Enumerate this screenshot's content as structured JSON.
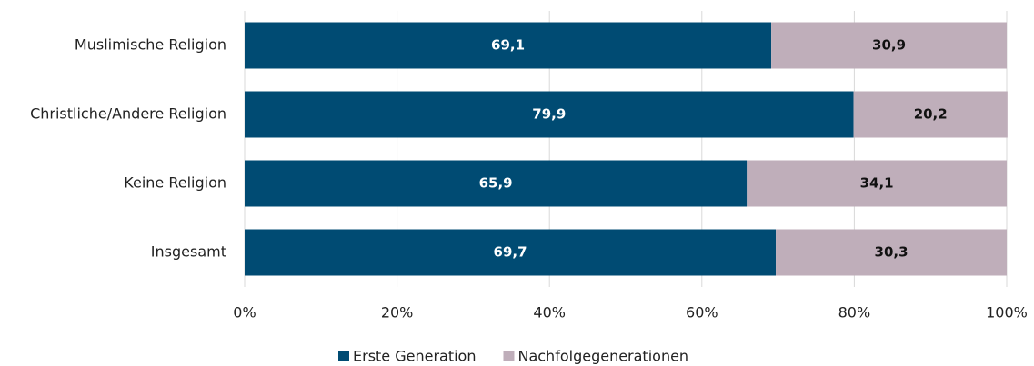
{
  "chart_data": {
    "type": "stacked_barh",
    "categories": [
      "Muslimische Religion",
      "Christliche/Andere Religion",
      "Keine Religion",
      "Insgesamt"
    ],
    "series": [
      {
        "name": "Erste Generation",
        "color": "#004b73",
        "values": [
          69.1,
          79.9,
          65.9,
          69.7
        ],
        "value_labels": [
          "69,1",
          "79,9",
          "65,9",
          "69,7"
        ]
      },
      {
        "name": "Nachfolgegenerationen",
        "color": "#bfaeba",
        "values": [
          30.9,
          20.2,
          34.1,
          30.3
        ],
        "value_labels": [
          "30,9",
          "20,2",
          "34,1",
          "30,3"
        ]
      }
    ],
    "xlim": [
      0,
      100
    ],
    "xticks": [
      {
        "value": 0,
        "label": "0%"
      },
      {
        "value": 20,
        "label": "20%"
      },
      {
        "value": 40,
        "label": "40%"
      },
      {
        "value": 60,
        "label": "60%"
      },
      {
        "value": 80,
        "label": "80%"
      },
      {
        "value": 100,
        "label": "100%"
      }
    ],
    "grid": true,
    "legend": "bottom"
  }
}
